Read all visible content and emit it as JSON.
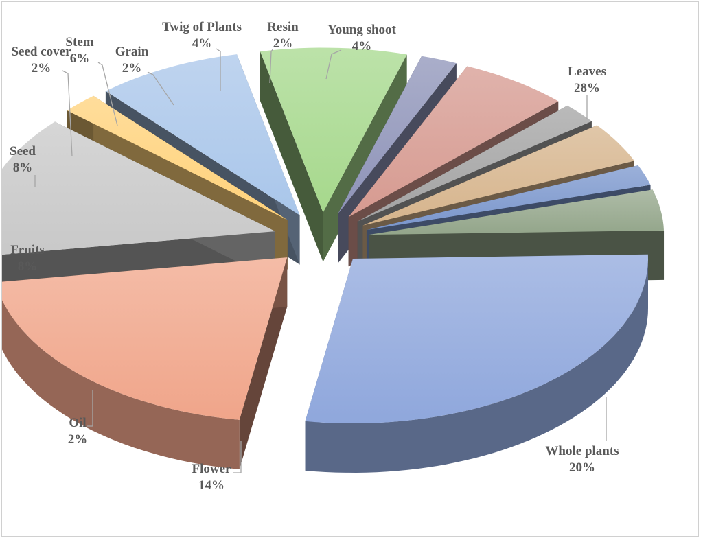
{
  "chart_data": {
    "type": "pie",
    "style": "3d exploded pie",
    "title": "",
    "series": [
      {
        "name": "Leaves",
        "value": 28,
        "display": "28%",
        "color": "#8fa7dc"
      },
      {
        "name": "Whole plants",
        "value": 20,
        "display": "20%",
        "color": "#f0a58a"
      },
      {
        "name": "Flower",
        "value": 14,
        "display": "14%",
        "color": "#c8c8c8"
      },
      {
        "name": "Oil",
        "value": 2,
        "display": "2%",
        "color": "#ffd27a"
      },
      {
        "name": "Fruits",
        "value": 8,
        "display": "8%",
        "color": "#a9c6ea"
      },
      {
        "name": "Seed",
        "value": 8,
        "display": "8%",
        "color": "#a6d88c"
      },
      {
        "name": "Seed cover",
        "value": 2,
        "display": "2%",
        "color": "#8e93b8"
      },
      {
        "name": "Stem",
        "value": 6,
        "display": "6%",
        "color": "#d69a90"
      },
      {
        "name": "Grain",
        "value": 2,
        "display": "2%",
        "color": "#a3a3a3"
      },
      {
        "name": "Twig of Plants",
        "value": 4,
        "display": "4%",
        "color": "#d6b48c"
      },
      {
        "name": "Resin",
        "value": 2,
        "display": "2%",
        "color": "#7a96cc"
      },
      {
        "name": "Young shoot",
        "value": 4,
        "display": "4%",
        "color": "#93a58a"
      }
    ],
    "data_labels": "category name and percentage",
    "legend": "none"
  }
}
